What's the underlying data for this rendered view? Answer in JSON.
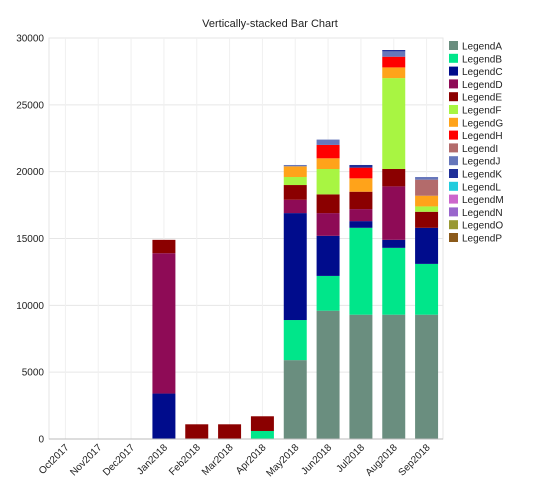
{
  "chart_data": {
    "type": "bar",
    "stacked": true,
    "title": "Vertically-stacked Bar Chart",
    "xlabel": "",
    "ylabel": "",
    "ylim": [
      0,
      30000
    ],
    "yticks": [
      0,
      5000,
      10000,
      15000,
      20000,
      25000,
      30000
    ],
    "grid": true,
    "legend_position": "right",
    "categories": [
      "Oct2017",
      "Nov2017",
      "Dec2017",
      "Jan2018",
      "Feb2018",
      "Mar2018",
      "Apr2018",
      "May2018",
      "Jun2018",
      "Jul2018",
      "Aug2018",
      "Sep2018"
    ],
    "series": [
      {
        "name": "LegendA",
        "color": "#6a8e7f",
        "values": [
          0,
          0,
          0,
          0,
          0,
          0,
          0,
          5900,
          9600,
          9300,
          9300,
          9300
        ]
      },
      {
        "name": "LegendB",
        "color": "#00e68a",
        "values": [
          0,
          0,
          0,
          0,
          0,
          0,
          600,
          3000,
          2600,
          6500,
          5000,
          3800
        ]
      },
      {
        "name": "LegendC",
        "color": "#000c8c",
        "values": [
          0,
          0,
          0,
          3400,
          0,
          0,
          0,
          8000,
          3000,
          500,
          600,
          2700
        ]
      },
      {
        "name": "LegendD",
        "color": "#8e0b56",
        "values": [
          0,
          0,
          0,
          10500,
          0,
          0,
          0,
          1000,
          1700,
          900,
          4000,
          0
        ]
      },
      {
        "name": "LegendE",
        "color": "#8b0000",
        "values": [
          0,
          0,
          0,
          1000,
          1100,
          1100,
          1100,
          1100,
          1400,
          1300,
          1300,
          1200
        ]
      },
      {
        "name": "LegendF",
        "color": "#a8f542",
        "values": [
          0,
          0,
          0,
          0,
          0,
          0,
          0,
          600,
          1900,
          0,
          6800,
          400
        ]
      },
      {
        "name": "LegendG",
        "color": "#ffa31a",
        "values": [
          0,
          0,
          0,
          0,
          0,
          0,
          0,
          800,
          800,
          1000,
          800,
          800
        ]
      },
      {
        "name": "LegendH",
        "color": "#ff0000",
        "values": [
          0,
          0,
          0,
          0,
          0,
          0,
          0,
          0,
          1000,
          800,
          800,
          0
        ]
      },
      {
        "name": "LegendI",
        "color": "#b36b6b",
        "values": [
          0,
          0,
          0,
          0,
          0,
          0,
          0,
          0,
          0,
          0,
          0,
          1200
        ]
      },
      {
        "name": "LegendJ",
        "color": "#6677bb",
        "values": [
          0,
          0,
          0,
          0,
          0,
          0,
          0,
          100,
          400,
          0,
          400,
          200
        ]
      },
      {
        "name": "LegendK",
        "color": "#1f2f99",
        "values": [
          0,
          0,
          0,
          0,
          0,
          0,
          0,
          0,
          0,
          200,
          100,
          0
        ]
      },
      {
        "name": "LegendL",
        "color": "#22ccdd",
        "values": [
          0,
          0,
          0,
          0,
          0,
          0,
          0,
          0,
          0,
          0,
          0,
          0
        ]
      },
      {
        "name": "LegendM",
        "color": "#cc66cc",
        "values": [
          0,
          0,
          0,
          0,
          0,
          0,
          0,
          0,
          0,
          0,
          0,
          0
        ]
      },
      {
        "name": "LegendN",
        "color": "#9966cc",
        "values": [
          0,
          0,
          0,
          0,
          0,
          0,
          0,
          0,
          0,
          0,
          0,
          0
        ]
      },
      {
        "name": "LegendO",
        "color": "#999933",
        "values": [
          0,
          0,
          0,
          0,
          0,
          0,
          0,
          0,
          0,
          0,
          0,
          0
        ]
      },
      {
        "name": "LegendP",
        "color": "#8b5a1a",
        "values": [
          0,
          0,
          0,
          0,
          0,
          0,
          0,
          0,
          0,
          0,
          0,
          0
        ]
      }
    ]
  }
}
